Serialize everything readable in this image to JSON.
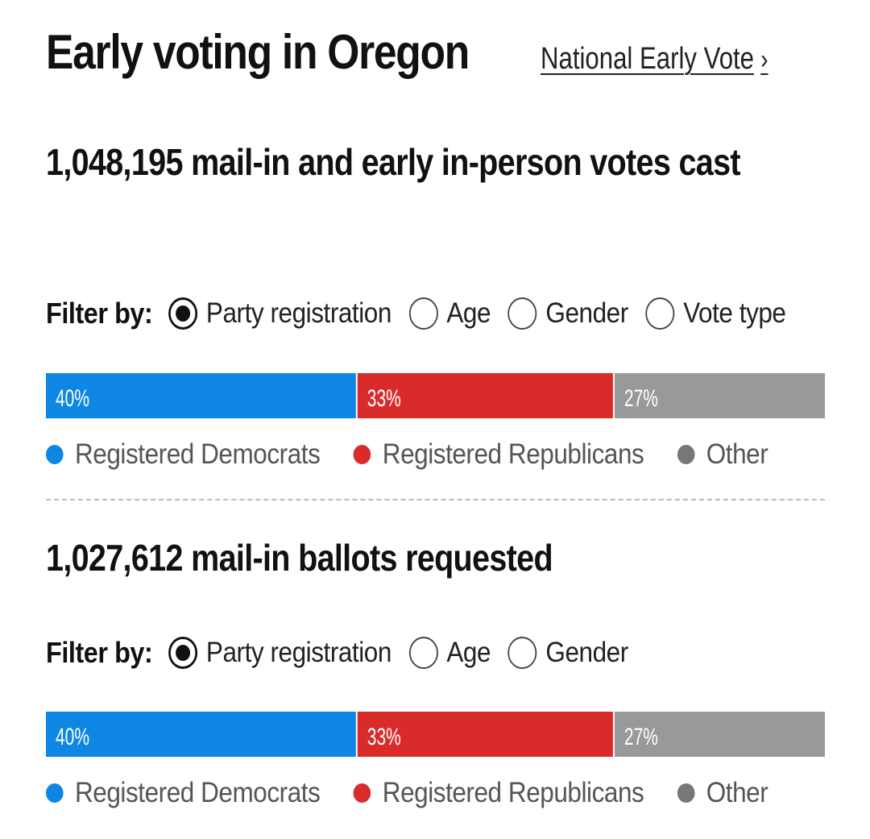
{
  "header": {
    "title": "Early voting in Oregon",
    "link_label": "National Early Vote",
    "link_chevron": "›"
  },
  "filter_label": "Filter by:",
  "colors": {
    "democrats": "#0d87e3",
    "republicans": "#da2b2b",
    "other": "#999999"
  },
  "sections": [
    {
      "count": "1,048,195",
      "headline_rest": " mail-in and early in-person votes cast",
      "filters": [
        {
          "label": "Party registration",
          "checked": true
        },
        {
          "label": "Age",
          "checked": false
        },
        {
          "label": "Gender",
          "checked": false
        },
        {
          "label": "Vote type",
          "checked": false
        }
      ],
      "legend": [
        "Registered Democrats",
        "Registered Republicans",
        "Other"
      ]
    },
    {
      "count": "1,027,612",
      "headline_rest": " mail-in ballots requested",
      "filters": [
        {
          "label": "Party registration",
          "checked": true
        },
        {
          "label": "Age",
          "checked": false
        },
        {
          "label": "Gender",
          "checked": false
        }
      ],
      "legend": [
        "Registered Democrats",
        "Registered Republicans",
        "Other"
      ]
    }
  ],
  "chart_data": [
    {
      "type": "bar",
      "title": "1,048,195 mail-in and early in-person votes cast",
      "stacked": true,
      "categories": [
        "Registered Democrats",
        "Registered Republicans",
        "Other"
      ],
      "values": [
        40,
        33,
        27
      ],
      "labels": [
        "40%",
        "33%",
        "27%"
      ],
      "unit": "%"
    },
    {
      "type": "bar",
      "title": "1,027,612 mail-in ballots requested",
      "stacked": true,
      "categories": [
        "Registered Democrats",
        "Registered Republicans",
        "Other"
      ],
      "values": [
        40,
        33,
        27
      ],
      "labels": [
        "40%",
        "33%",
        "27%"
      ],
      "unit": "%"
    }
  ]
}
